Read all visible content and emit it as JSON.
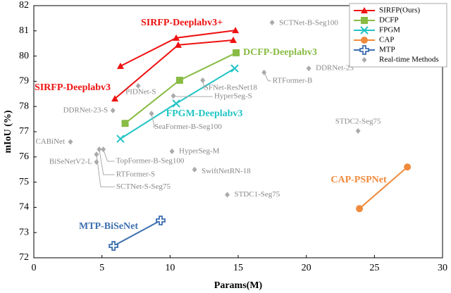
{
  "chart_data": {
    "type": "line",
    "xlabel": "Params(M)",
    "ylabel": "mIoU (%)",
    "xlim": [
      0,
      30
    ],
    "xticks": [
      0,
      5,
      10,
      15,
      20,
      25,
      30
    ],
    "ylim": [
      72,
      82
    ],
    "yticks": [
      72,
      73,
      74,
      75,
      76,
      77,
      78,
      79,
      80,
      81,
      82
    ],
    "grid": false,
    "legend": "upper right",
    "series": [
      {
        "name": "SIRFP(Ours)",
        "color": "#ee1111",
        "marker": "triangle",
        "lines": [
          {
            "label": "SIRFP-Deeplabv3+",
            "x": [
              6.36,
              10.45,
              14.8
            ],
            "y": [
              79.6,
              80.72,
              81.02
            ]
          },
          {
            "label": "SIRFP-Deeplabv3",
            "x": [
              5.95,
              10.6,
              14.64
            ],
            "y": [
              78.31,
              80.44,
              80.63
            ]
          }
        ]
      },
      {
        "name": "DCFP",
        "color": "#88bb44",
        "marker": "square",
        "lines": [
          {
            "label": "DCFP-Deeplabv3",
            "x": [
              6.7,
              10.7,
              14.85
            ],
            "y": [
              77.33,
              79.04,
              80.13
            ]
          }
        ]
      },
      {
        "name": "FPGM",
        "color": "#22c4c4",
        "marker": "x",
        "lines": [
          {
            "label": "FPGM-Deeplabv3",
            "x": [
              6.36,
              10.45,
              14.74
            ],
            "y": [
              76.72,
              78.12,
              79.51
            ]
          }
        ]
      },
      {
        "name": "CAP",
        "color": "#f08a3c",
        "marker": "circle",
        "lines": [
          {
            "label": "CAP-PSPNet",
            "x": [
              23.9,
              27.42
            ],
            "y": [
              73.95,
              75.6
            ]
          }
        ]
      },
      {
        "name": "MTP",
        "color": "#3d6fb0",
        "marker": "plus",
        "lines": [
          {
            "label": "MTP-BiSeNet",
            "x": [
              5.85,
              9.31
            ],
            "y": [
              72.47,
              73.48
            ]
          }
        ]
      },
      {
        "name": "Real-time Methods",
        "color": "#aaaaaa",
        "marker": "diamond",
        "labels": [
          "PIDNet-S",
          "DDRNet-23-S",
          "SCTNet-B-Seg100",
          "DDRNet-23",
          "RTFormer-B",
          "SFNet-ResNet18",
          "HyperSeg-S",
          "SeaFormer-B-Seg100",
          "STDC2-Seg75",
          "CABiNet",
          "HyperSeg-M",
          "TopFormer-B-Seg100",
          "RTFormer-S",
          "SCTNet-S-Seg75",
          "BiSeNetV2-L",
          "SwiftNetRN-18",
          "STDC1-Seg75"
        ],
        "x": [
          7.66,
          5.8,
          17.49,
          20.18,
          16.9,
          12.4,
          10.24,
          8.64,
          23.8,
          2.69,
          10.14,
          5.1,
          4.8,
          4.6,
          4.6,
          11.8,
          14.2
        ],
        "y": [
          78.82,
          77.84,
          81.33,
          79.51,
          79.35,
          79.04,
          78.42,
          77.72,
          77.03,
          76.6,
          76.22,
          76.3,
          76.3,
          76.1,
          75.8,
          75.5,
          74.5
        ]
      }
    ]
  }
}
